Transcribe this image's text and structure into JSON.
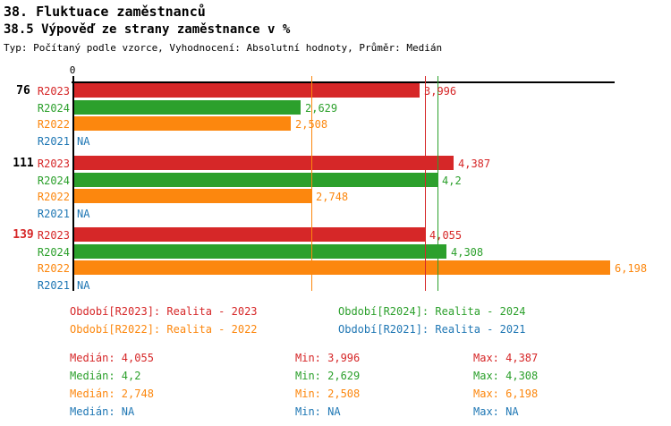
{
  "header": {
    "title": "38. Fluktuace zaměstnanců",
    "subtitle": "38.5 Výpověď ze strany zaměstnance v %",
    "meta": "Typ: Počítaný podle vzorce, Vyhodnocení: Absolutní hodnoty, Průměr: Medián"
  },
  "chart_data": {
    "type": "bar",
    "orientation": "horizontal",
    "value_format": "decimal-comma",
    "axis": {
      "origin_label": "0",
      "xlim": [
        0,
        6.27
      ],
      "grid": false
    },
    "na_label": "NA",
    "series": [
      {
        "id": "R2023",
        "name": "Realita - 2023",
        "color": "#d62728"
      },
      {
        "id": "R2024",
        "name": "Realita - 2024",
        "color": "#2ca02c"
      },
      {
        "id": "R2022",
        "name": "Realita - 2022",
        "color": "#fc870e"
      },
      {
        "id": "R2021",
        "name": "Realita - 2021",
        "color": "#1f77b4"
      }
    ],
    "groups": [
      {
        "label": "76",
        "label_color": "#000000",
        "rows": [
          {
            "series": "R2023",
            "value": "3,996"
          },
          {
            "series": "R2024",
            "value": "2,629"
          },
          {
            "series": "R2022",
            "value": "2,508"
          },
          {
            "series": "R2021",
            "value": "NA"
          }
        ]
      },
      {
        "label": "111",
        "label_color": "#000000",
        "rows": [
          {
            "series": "R2023",
            "value": "4,387"
          },
          {
            "series": "R2024",
            "value": "4,2"
          },
          {
            "series": "R2022",
            "value": "2,748"
          },
          {
            "series": "R2021",
            "value": "NA"
          }
        ]
      },
      {
        "label": "139",
        "label_color": "#d62728",
        "rows": [
          {
            "series": "R2023",
            "value": "4,055"
          },
          {
            "series": "R2024",
            "value": "4,308"
          },
          {
            "series": "R2022",
            "value": "6,198"
          },
          {
            "series": "R2021",
            "value": "NA"
          }
        ]
      }
    ],
    "median_lines": [
      {
        "series": "R2022",
        "value": "2,748",
        "color": "#fc870e"
      },
      {
        "series": "R2023",
        "value": "4,055",
        "color": "#d62728"
      },
      {
        "series": "R2024",
        "value": "4,2",
        "color": "#2ca02c"
      }
    ]
  },
  "legend": {
    "rows": [
      [
        {
          "text": "Období[R2023]: Realita - 2023",
          "color": "#d62728"
        },
        {
          "text": "Období[R2024]: Realita - 2024",
          "color": "#2ca02c"
        }
      ],
      [
        {
          "text": "Období[R2022]: Realita - 2022",
          "color": "#fc870e"
        },
        {
          "text": "Období[R2021]: Realita - 2021",
          "color": "#1f77b4"
        }
      ]
    ]
  },
  "stats": {
    "rows": [
      {
        "color": "#d62728",
        "cells": [
          "Medián: 4,055",
          "Min: 3,996",
          "Max: 4,387"
        ]
      },
      {
        "color": "#2ca02c",
        "cells": [
          "Medián: 4,2",
          "Min: 2,629",
          "Max: 4,308"
        ]
      },
      {
        "color": "#fc870e",
        "cells": [
          "Medián: 2,748",
          "Min: 2,508",
          "Max: 6,198"
        ]
      },
      {
        "color": "#1f77b4",
        "cells": [
          "Medián: NA",
          "Min: NA",
          "Max: NA"
        ]
      }
    ]
  }
}
